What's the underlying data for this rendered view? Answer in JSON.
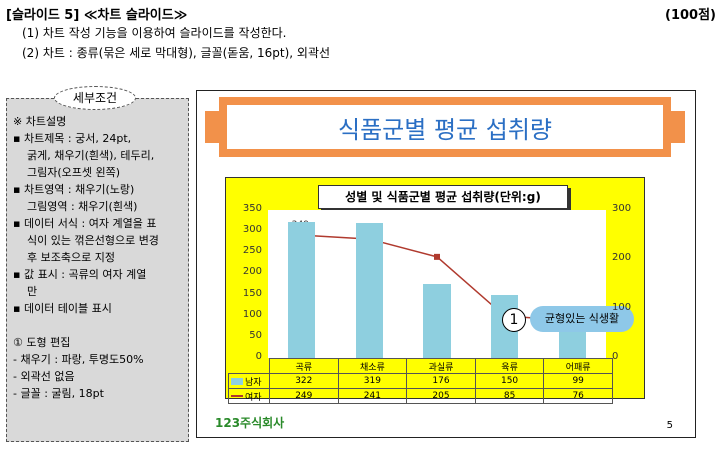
{
  "header": {
    "title": "[슬라이드 5] ≪차트 슬라이드≫",
    "points": "(100점)"
  },
  "instructions": [
    "(1) 차트 작성 기능을 이용하여 슬라이드를 작성한다.",
    "(2) 차트 : 종류(묶은 세로 막대형), 글꼴(돋움, 16pt), 외곽선"
  ],
  "conditions": {
    "title": "세부조건",
    "lines": [
      "※ 차트설명",
      "▪ 차트제목 : 궁서, 24pt,",
      "  굵게, 채우기(흰색), 테두리,",
      "  그림자(오프셋 왼쪽)",
      "▪ 차트영역 : 채우기(노랑)",
      "  그림영역 : 채우기(흰색)",
      "▪ 데이터 서식 : 여자 계열을 표",
      "  식이 있는 꺾은선형으로 변경",
      "  후 보조축으로 지정",
      "▪ 값 표시 : 곡류의 여자 계열",
      "  만",
      "▪ 데이터 테이블 표시",
      "",
      "① 도형 편집",
      " - 채우기 : 파랑, 투명도50%",
      " - 외곽선 없음",
      " - 글꼴 : 굴림, 18pt"
    ]
  },
  "slide": {
    "banner_title": "식품군별 평균 섭취량",
    "callout_num": "1",
    "callout_text": "균형있는 식생활",
    "logo": "123주식회사",
    "page_num": "5"
  },
  "chart_data": {
    "type": "bar",
    "title": "성별 및 식품군별 평균 섭취량(단위:g)",
    "categories": [
      "곡류",
      "채소류",
      "과실류",
      "육류",
      "어패류"
    ],
    "series": [
      {
        "name": "남자",
        "type": "bar",
        "axis": "primary",
        "values": [
          322,
          319,
          176,
          150,
          99
        ]
      },
      {
        "name": "여자",
        "type": "line",
        "axis": "secondary",
        "values": [
          249,
          241,
          205,
          85,
          76
        ]
      }
    ],
    "y_primary": {
      "ylim": [
        0,
        350
      ],
      "ticks": [
        "350",
        "300",
        "250",
        "200",
        "150",
        "100",
        "50",
        "0"
      ]
    },
    "y_secondary": {
      "ylim": [
        0,
        300
      ],
      "ticks": [
        "300",
        "200",
        "100",
        "0"
      ]
    },
    "data_label": "249",
    "colors": {
      "bar": "#8ecfdf",
      "line": "#b03a2e"
    }
  }
}
